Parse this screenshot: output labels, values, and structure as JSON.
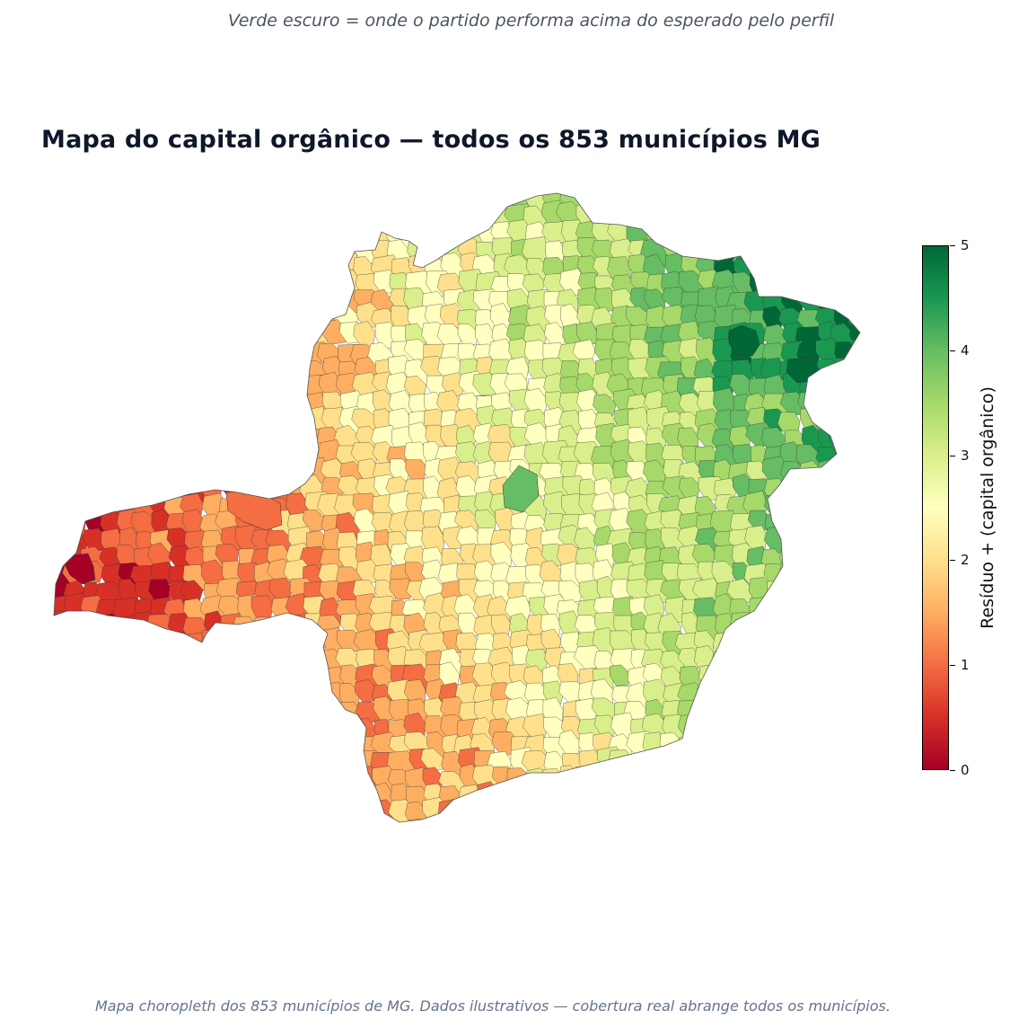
{
  "subtitle": "Verde escuro = onde o partido performa acima do esperado pelo perfil",
  "title": "Mapa do capital orgânico — todos os 853 municípios MG",
  "colorbar": {
    "label": "Resíduo + (capital orgânico)",
    "min": 0,
    "max": 5,
    "ticks": [
      "0",
      "1",
      "2",
      "3",
      "4",
      "5"
    ],
    "colormap": "RdYlGn",
    "colors": [
      "#a50026",
      "#d73027",
      "#f46d43",
      "#fdae61",
      "#fee08b",
      "#ffffbf",
      "#d9ef8b",
      "#a6d96a",
      "#66bd63",
      "#1a9850",
      "#006837"
    ]
  },
  "footnote": "Mapa choropleth dos 853 municípios de MG. Dados ilustrativos — cobertura real abrange todos os municípios.",
  "map": {
    "region": "Minas Gerais",
    "municipality_count": 853
  }
}
